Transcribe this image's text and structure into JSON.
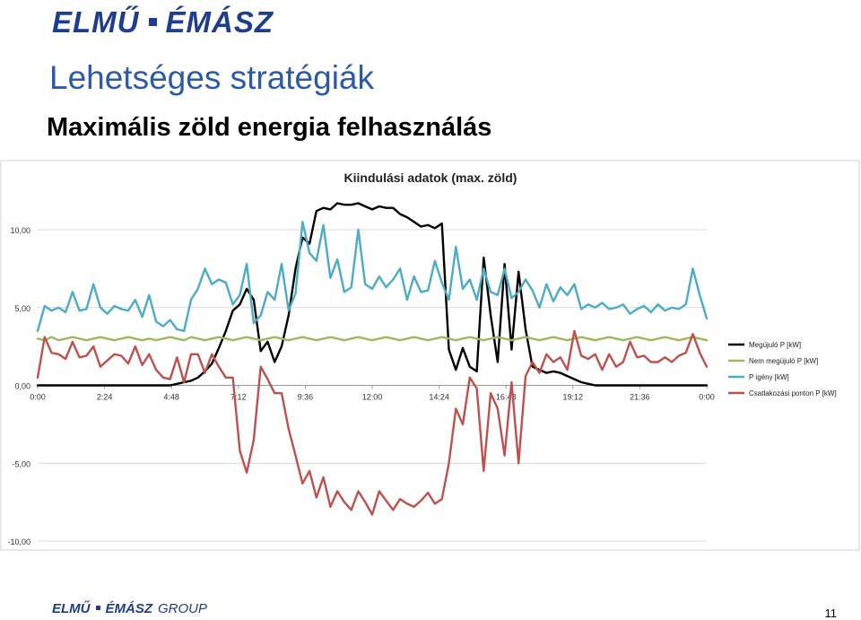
{
  "header": {
    "logo_left": "ELMŰ",
    "logo_right": "ÉMÁSZ",
    "title": "Lehetséges stratégiák",
    "subtitle": "Maximális zöld energia felhasználás"
  },
  "footer": {
    "logo_left": "ELMŰ",
    "logo_right": "ÉMÁSZ",
    "logo_group": "GROUP",
    "page_number": "11"
  },
  "colors": {
    "brand": "#1f3d8f",
    "title": "#2c5aa8"
  },
  "chart_data": {
    "type": "line",
    "title": "Kiindulási adatok (max. zöld)",
    "x_tick_labels": [
      "0:00",
      "2:24",
      "4:48",
      "7:12",
      "9:36",
      "12:00",
      "14:24",
      "16:48",
      "19:12",
      "21:36",
      "0:00"
    ],
    "y_tick_labels": [
      "10,00",
      "5,00",
      "0,00",
      "-5,00",
      "-10,00"
    ],
    "y_ticks": [
      10,
      5,
      0,
      -5,
      -10
    ],
    "xlim_hours": [
      0,
      24
    ],
    "ylim": [
      -10,
      10
    ],
    "grid": "horizontal",
    "legend_position": "right",
    "x_hours": [
      0,
      0.25,
      0.5,
      0.75,
      1,
      1.25,
      1.5,
      1.75,
      2,
      2.25,
      2.5,
      2.75,
      3,
      3.25,
      3.5,
      3.75,
      4,
      4.25,
      4.5,
      4.75,
      5,
      5.25,
      5.5,
      5.75,
      6,
      6.25,
      6.5,
      6.75,
      7,
      7.25,
      7.5,
      7.75,
      8,
      8.25,
      8.5,
      8.75,
      9,
      9.25,
      9.5,
      9.75,
      10,
      10.25,
      10.5,
      10.75,
      11,
      11.25,
      11.5,
      11.75,
      12,
      12.25,
      12.5,
      12.75,
      13,
      13.25,
      13.5,
      13.75,
      14,
      14.25,
      14.5,
      14.75,
      15,
      15.25,
      15.5,
      15.75,
      16,
      16.25,
      16.5,
      16.75,
      17,
      17.25,
      17.5,
      17.75,
      18,
      18.25,
      18.5,
      18.75,
      19,
      19.25,
      19.5,
      19.75,
      20,
      20.25,
      20.5,
      20.75,
      21,
      21.25,
      21.5,
      21.75,
      22,
      22.25,
      22.5,
      22.75,
      23,
      23.25,
      23.5,
      23.75,
      24
    ],
    "series": [
      {
        "name": "Megújuló P [kW]",
        "color": "#000000",
        "values": [
          0,
          0,
          0,
          0,
          0,
          0,
          0,
          0,
          0,
          0,
          0,
          0,
          0,
          0,
          0,
          0,
          0,
          0,
          0,
          0,
          0.1,
          0.2,
          0.3,
          0.5,
          0.9,
          1.4,
          2.4,
          3.5,
          4.8,
          5.2,
          6.2,
          5.5,
          2.2,
          2.8,
          1.5,
          2.5,
          4.5,
          7.5,
          9.5,
          9.1,
          11.2,
          11.4,
          11.3,
          11.7,
          11.6,
          11.6,
          11.7,
          11.5,
          11.3,
          11.5,
          11.4,
          11.4,
          11.0,
          10.8,
          10.5,
          10.2,
          10.3,
          10.1,
          10.4,
          2.3,
          1.0,
          2.4,
          1.2,
          0.9,
          8.2,
          4.5,
          1.5,
          7.8,
          2.3,
          7.3,
          3.6,
          1.2,
          1.0,
          0.8,
          0.9,
          0.8,
          0.6,
          0.4,
          0.2,
          0.1,
          0,
          0,
          0,
          0,
          0,
          0,
          0,
          0,
          0,
          0,
          0,
          0,
          0,
          0,
          0,
          0,
          0
        ]
      },
      {
        "name": "Nem megújuló P [kW]",
        "color": "#9bbb59",
        "values": [
          3.0,
          2.9,
          3.1,
          2.9,
          3.0,
          3.1,
          3.0,
          2.9,
          3.0,
          3.1,
          3.0,
          2.9,
          3.0,
          3.1,
          3.0,
          2.9,
          3.0,
          2.9,
          3.0,
          3.1,
          3.0,
          2.9,
          3.1,
          3.0,
          2.9,
          3.0,
          3.1,
          3.0,
          2.9,
          3.0,
          3.1,
          3.0,
          2.9,
          3.0,
          3.1,
          3.0,
          2.9,
          3.0,
          3.1,
          3.0,
          2.9,
          3.0,
          3.1,
          3.0,
          2.9,
          3.0,
          3.1,
          3.0,
          2.9,
          3.0,
          3.1,
          3.0,
          2.9,
          3.0,
          3.1,
          3.0,
          2.9,
          3.0,
          3.1,
          3.0,
          2.9,
          3.0,
          3.1,
          3.0,
          2.9,
          3.0,
          3.1,
          3.0,
          2.9,
          3.0,
          3.1,
          3.0,
          2.9,
          3.0,
          3.1,
          3.0,
          2.9,
          3.0,
          3.1,
          3.0,
          2.9,
          3.0,
          3.1,
          3.0,
          2.9,
          3.0,
          3.1,
          3.0,
          2.9,
          3.0,
          3.1,
          3.0,
          2.9,
          3.0,
          3.1,
          3.0,
          2.9
        ]
      },
      {
        "name": "P igény [kW]",
        "color": "#4bacc6",
        "values": [
          3.5,
          5.1,
          4.8,
          5.0,
          4.7,
          6.0,
          4.8,
          4.9,
          6.5,
          5.0,
          4.6,
          5.1,
          4.9,
          4.8,
          5.5,
          4.4,
          5.8,
          4.1,
          3.8,
          4.2,
          3.6,
          3.5,
          5.5,
          6.2,
          7.5,
          6.5,
          6.8,
          6.6,
          5.2,
          5.8,
          7.8,
          4.0,
          4.5,
          6.0,
          5.5,
          7.8,
          4.8,
          5.9,
          10.5,
          8.5,
          8.0,
          10.3,
          6.9,
          8.1,
          6.0,
          6.3,
          10.0,
          6.5,
          6.2,
          7.0,
          6.3,
          6.8,
          7.5,
          5.5,
          7.0,
          6.0,
          6.1,
          8.0,
          6.6,
          5.5,
          8.9,
          6.2,
          6.8,
          5.5,
          7.5,
          6.0,
          5.8,
          7.5,
          5.6,
          6.0,
          6.8,
          6.1,
          5.0,
          6.5,
          5.4,
          6.3,
          5.8,
          6.5,
          4.9,
          5.2,
          5.0,
          5.3,
          4.9,
          5.0,
          5.2,
          4.6,
          4.9,
          5.1,
          4.7,
          5.2,
          4.8,
          5.0,
          4.9,
          5.2,
          7.5,
          5.8,
          4.3
        ]
      },
      {
        "name": "Csatlakozási ponton P [kW]",
        "color": "#c0504d",
        "values": [
          0.5,
          3.1,
          2.1,
          2.0,
          1.7,
          2.8,
          1.8,
          1.9,
          2.5,
          1.2,
          1.6,
          2.0,
          1.9,
          1.4,
          2.5,
          1.3,
          2.0,
          1.0,
          0.5,
          0.4,
          1.8,
          0.2,
          2.0,
          2.0,
          0.8,
          2.0,
          1.2,
          0.5,
          0.5,
          -4.2,
          -5.6,
          -3.5,
          1.2,
          0.4,
          -0.5,
          -0.5,
          -2.8,
          -4.5,
          -6.3,
          -5.5,
          -7.2,
          -5.9,
          -7.8,
          -6.8,
          -7.5,
          -8.0,
          -6.8,
          -7.5,
          -8.3,
          -6.8,
          -7.4,
          -8.0,
          -7.3,
          -7.6,
          -7.8,
          -7.4,
          -6.9,
          -7.6,
          -7.3,
          -5.0,
          -1.5,
          -2.5,
          0.5,
          -0.2,
          -5.5,
          -0.5,
          -1.5,
          -4.5,
          0.2,
          -5.0,
          0.6,
          1.5,
          0.8,
          2.0,
          1.5,
          1.8,
          1.0,
          3.5,
          1.9,
          1.7,
          2.0,
          1.0,
          2.0,
          1.2,
          1.5,
          2.8,
          1.8,
          1.9,
          1.5,
          1.5,
          1.8,
          1.5,
          1.9,
          2.1,
          3.3,
          2.1,
          1.2
        ]
      }
    ]
  }
}
